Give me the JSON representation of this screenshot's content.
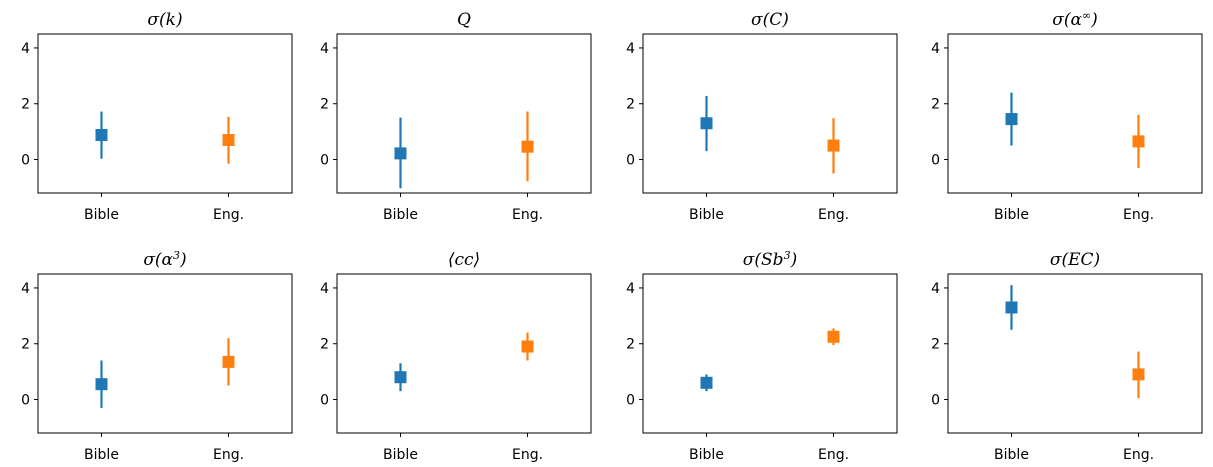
{
  "colors": {
    "bible": "#1f77b4",
    "eng": "#ff7f0e"
  },
  "chart_data": [
    {
      "type": "scatter",
      "title": "σ(k)",
      "categories": [
        "Bible",
        "Eng."
      ],
      "ylim": [
        -1.2,
        4.5
      ],
      "yticks": [
        "0",
        "2",
        "4"
      ],
      "series": [
        {
          "values": [
            0.88,
            0.7
          ],
          "err_low": [
            0.03,
            -0.15
          ],
          "err_high": [
            1.72,
            1.53
          ]
        }
      ]
    },
    {
      "type": "scatter",
      "title": "Q",
      "categories": [
        "Bible",
        "Eng."
      ],
      "ylim": [
        -1.2,
        4.5
      ],
      "yticks": [
        "0",
        "2",
        "4"
      ],
      "series": [
        {
          "values": [
            0.22,
            0.46
          ],
          "err_low": [
            -1.03,
            -0.78
          ],
          "err_high": [
            1.5,
            1.72
          ]
        }
      ]
    },
    {
      "type": "scatter",
      "title": "σ(C)",
      "categories": [
        "Bible",
        "Eng."
      ],
      "ylim": [
        -1.2,
        4.5
      ],
      "yticks": [
        "0",
        "2",
        "4"
      ],
      "series": [
        {
          "values": [
            1.3,
            0.5
          ],
          "err_low": [
            0.3,
            -0.5
          ],
          "err_high": [
            2.28,
            1.48
          ]
        }
      ]
    },
    {
      "type": "scatter",
      "title": "σ(α∞)",
      "categories": [
        "Bible",
        "Eng."
      ],
      "ylim": [
        -1.2,
        4.5
      ],
      "yticks": [
        "0",
        "2",
        "4"
      ],
      "series": [
        {
          "values": [
            1.45,
            0.65
          ],
          "err_low": [
            0.5,
            -0.3
          ],
          "err_high": [
            2.4,
            1.6
          ]
        }
      ]
    },
    {
      "type": "scatter",
      "title": "σ(α3)",
      "categories": [
        "Bible",
        "Eng."
      ],
      "ylim": [
        -1.2,
        4.5
      ],
      "yticks": [
        "0",
        "2",
        "4"
      ],
      "series": [
        {
          "values": [
            0.55,
            1.35
          ],
          "err_low": [
            -0.3,
            0.5
          ],
          "err_high": [
            1.4,
            2.2
          ]
        }
      ]
    },
    {
      "type": "scatter",
      "title": "⟨cc⟩",
      "categories": [
        "Bible",
        "Eng."
      ],
      "ylim": [
        -1.2,
        4.5
      ],
      "yticks": [
        "0",
        "2",
        "4"
      ],
      "series": [
        {
          "values": [
            0.8,
            1.9
          ],
          "err_low": [
            0.3,
            1.4
          ],
          "err_high": [
            1.3,
            2.4
          ]
        }
      ]
    },
    {
      "type": "scatter",
      "title": "σ(Sb3)",
      "categories": [
        "Bible",
        "Eng."
      ],
      "ylim": [
        -1.2,
        4.5
      ],
      "yticks": [
        "0",
        "2",
        "4"
      ],
      "series": [
        {
          "values": [
            0.6,
            2.25
          ],
          "err_low": [
            0.3,
            1.95
          ],
          "err_high": [
            0.9,
            2.55
          ]
        }
      ]
    },
    {
      "type": "scatter",
      "title": "σ(EC)",
      "categories": [
        "Bible",
        "Eng."
      ],
      "ylim": [
        -1.2,
        4.5
      ],
      "yticks": [
        "0",
        "2",
        "4"
      ],
      "series": [
        {
          "values": [
            3.3,
            0.9
          ],
          "err_low": [
            2.5,
            0.05
          ],
          "err_high": [
            4.1,
            1.72
          ]
        }
      ]
    }
  ]
}
